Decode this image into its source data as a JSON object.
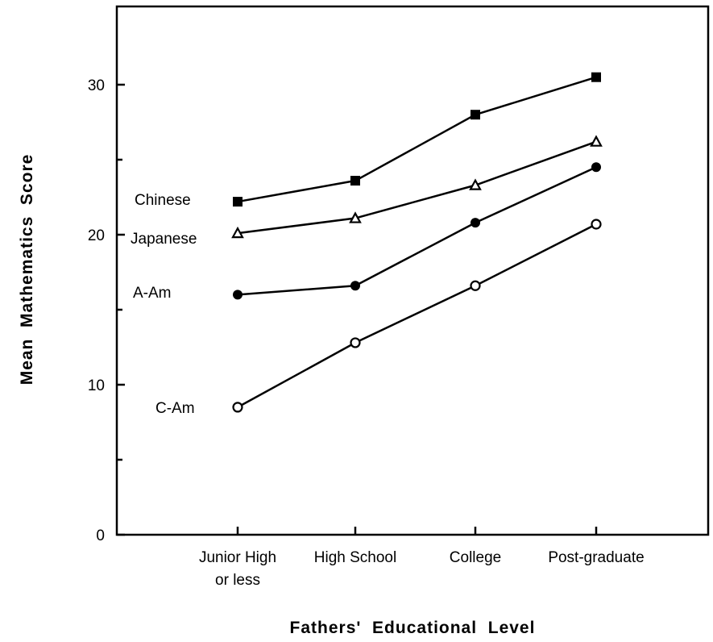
{
  "chart_data": {
    "type": "line",
    "title": "",
    "xlabel": "Fathers'  Educational  Level",
    "ylabel": "Mean  Mathematics  Score",
    "categories": [
      [
        "Junior High",
        "or less"
      ],
      [
        "High School"
      ],
      [
        "College"
      ],
      [
        "Post-graduate"
      ]
    ],
    "yticks": [
      0,
      10,
      20,
      30
    ],
    "ylim": [
      0,
      35
    ],
    "grid": false,
    "legend": "direct labels at left of each line",
    "series": [
      {
        "name": "Chinese",
        "marker": "filled-square",
        "values": [
          22.2,
          23.6,
          28.0,
          30.5
        ]
      },
      {
        "name": "Japanese",
        "marker": "open-triangle",
        "values": [
          20.1,
          21.1,
          23.3,
          26.2
        ]
      },
      {
        "name": "A-Am",
        "marker": "filled-circle",
        "values": [
          16.0,
          16.6,
          20.8,
          24.5
        ]
      },
      {
        "name": "C-Am",
        "marker": "open-circle",
        "values": [
          8.5,
          12.8,
          16.6,
          20.7
        ]
      }
    ]
  }
}
